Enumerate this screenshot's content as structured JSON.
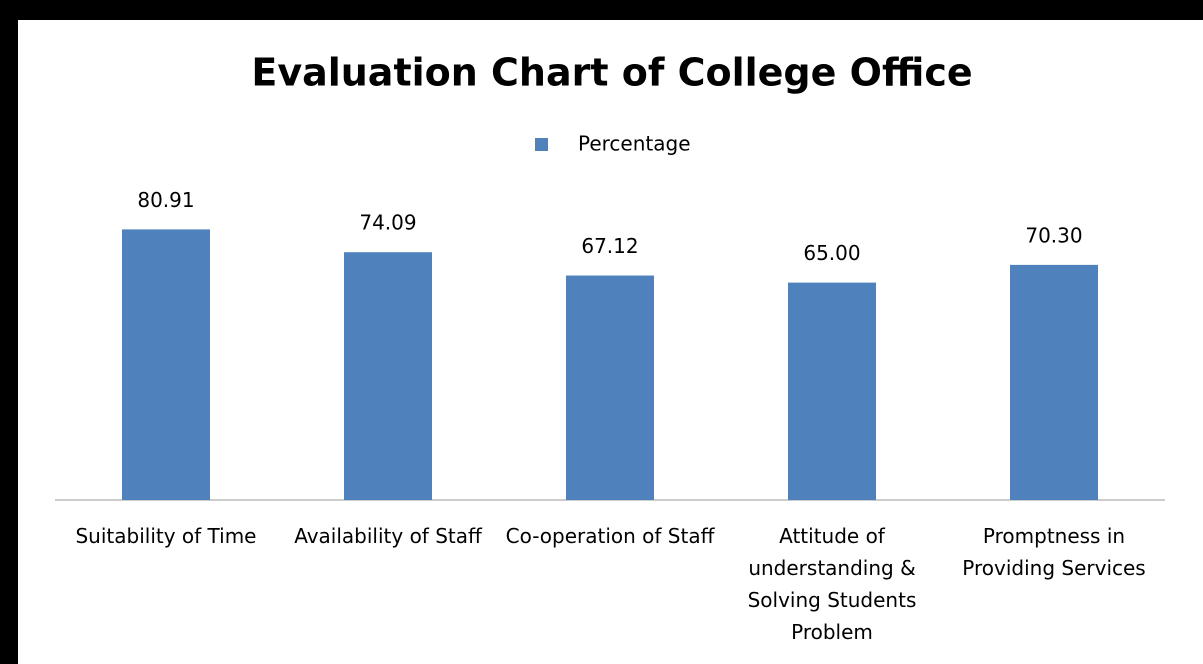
{
  "chart_data": {
    "type": "bar",
    "title": "Evaluation Chart of College Office",
    "categories": [
      "Suitability of Time",
      "Availability of Staff",
      "Co-operation of Staff",
      "Attitude of understanding & Solving Students Problem",
      "Promptness in Providing Services"
    ],
    "series": [
      {
        "name": "Percentage",
        "color": "#4f81bd",
        "values": [
          80.91,
          74.09,
          67.12,
          65,
          70.3
        ],
        "value_labels": [
          "80.91",
          "74.09",
          "67.12",
          "65.00",
          "70.30"
        ]
      }
    ],
    "ylim": [
      0,
      90
    ],
    "legend": "top"
  }
}
